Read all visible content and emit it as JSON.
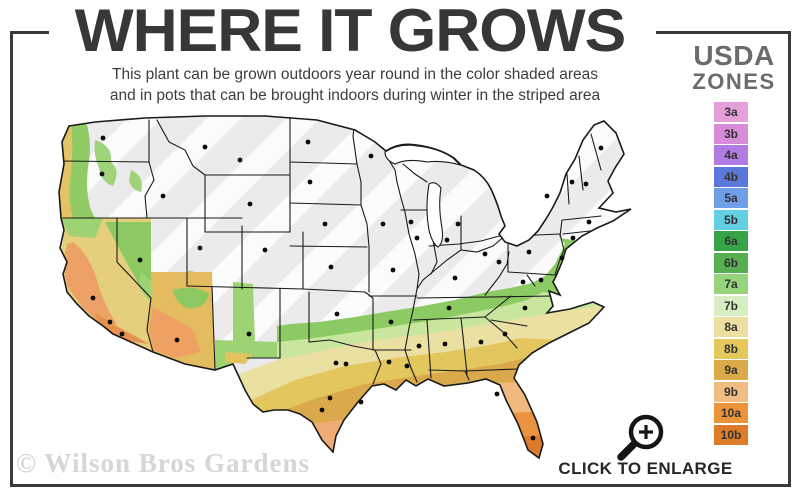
{
  "header": {
    "title": "WHERE IT GROWS",
    "subtitle_line1": "This plant can be grown outdoors year round in the color shaded areas",
    "subtitle_line2": "and in pots that can be brought indoors during winter in the striped area"
  },
  "legend": {
    "title_line1": "USDA",
    "title_line2": "ZONES",
    "zones": [
      {
        "label": "3a",
        "color": "#e5a0dc"
      },
      {
        "label": "3b",
        "color": "#d88bd8"
      },
      {
        "label": "4a",
        "color": "#b17ce2"
      },
      {
        "label": "4b",
        "color": "#5a77d9"
      },
      {
        "label": "5a",
        "color": "#6f9ee8"
      },
      {
        "label": "5b",
        "color": "#63cfe2"
      },
      {
        "label": "6a",
        "color": "#35a346"
      },
      {
        "label": "6b",
        "color": "#56b052"
      },
      {
        "label": "7a",
        "color": "#96d37d"
      },
      {
        "label": "7b",
        "color": "#d7eec2"
      },
      {
        "label": "8a",
        "color": "#ecdfa0"
      },
      {
        "label": "8b",
        "color": "#e5c75c"
      },
      {
        "label": "9a",
        "color": "#dcab49"
      },
      {
        "label": "9b",
        "color": "#f2bd83"
      },
      {
        "label": "10a",
        "color": "#eb9338"
      },
      {
        "label": "10b",
        "color": "#dc7c2b"
      }
    ]
  },
  "map": {
    "striped_fill": "#ebebed",
    "stripe_color": "#fbfbfc",
    "border_color": "#1a1a1a"
  },
  "footer": {
    "watermark": "© Wilson Bros Gardens",
    "enlarge_label": "CLICK TO ENLARGE"
  },
  "icons": {
    "magnifier": "zoom-in-icon"
  }
}
